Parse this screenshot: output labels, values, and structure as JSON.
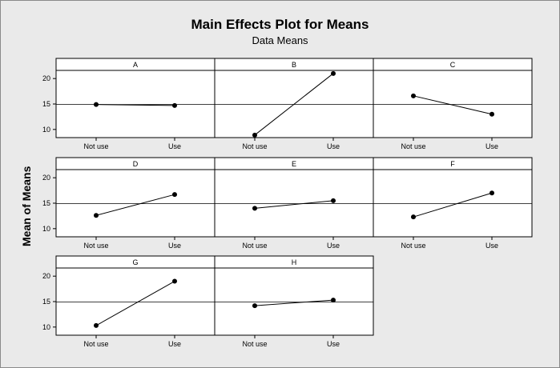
{
  "chart_data": {
    "type": "line",
    "title": "Main Effects Plot for Means",
    "subtitle": "Data Means",
    "ylabel": "Mean of Means",
    "categories": [
      "Not use",
      "Use"
    ],
    "ylim": [
      8.4,
      21.6
    ],
    "yticks": [
      10,
      15,
      20
    ],
    "reference_line": 14.9,
    "grid": false,
    "colors": {
      "line": "#000000",
      "reference": "#000000",
      "panel_bg": "#ffffff",
      "figure_bg": "#eaeaea"
    },
    "panels": [
      {
        "name": "A",
        "values": [
          14.9,
          14.7
        ]
      },
      {
        "name": "B",
        "values": [
          8.9,
          21.0
        ]
      },
      {
        "name": "C",
        "values": [
          16.6,
          13.0
        ]
      },
      {
        "name": "D",
        "values": [
          12.6,
          16.7
        ]
      },
      {
        "name": "E",
        "values": [
          14.0,
          15.5
        ]
      },
      {
        "name": "F",
        "values": [
          12.3,
          17.0
        ]
      },
      {
        "name": "G",
        "values": [
          10.3,
          19.0
        ]
      },
      {
        "name": "H",
        "values": [
          14.2,
          15.3
        ]
      }
    ]
  }
}
